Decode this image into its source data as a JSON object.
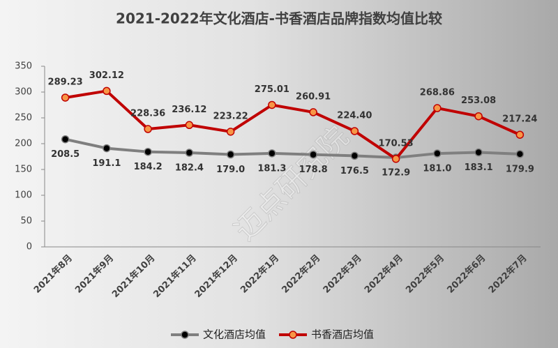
{
  "chart_data": {
    "type": "line",
    "title": "2021-2022年文化酒店-书香酒店品牌指数均值比较",
    "watermark": "迈点研究院",
    "categories": [
      "2021年8月",
      "2021年9月",
      "2021年10月",
      "2021年11月",
      "2021年12月",
      "2022年1月",
      "2022年2月",
      "2022年3月",
      "2022年4月",
      "2022年5月",
      "2022年6月",
      "2022年7月"
    ],
    "series": [
      {
        "name": "文化酒店均值",
        "color": "#7f7f7f",
        "marker_color": "#000000",
        "label_position": "below",
        "values": [
          208.5,
          191.1,
          184.2,
          182.4,
          179.0,
          181.3,
          178.8,
          176.5,
          172.9,
          181.0,
          183.1,
          179.9
        ],
        "value_labels": [
          "208.5",
          "191.1",
          "184.2",
          "182.4",
          "179.0",
          "181.3",
          "178.8",
          "176.5",
          "172.9",
          "181.0",
          "183.1",
          "179.9"
        ]
      },
      {
        "name": "书香酒店均值",
        "color": "#c00000",
        "marker_color": "#f79646",
        "label_position": "above",
        "values": [
          289.23,
          302.12,
          228.36,
          236.12,
          223.22,
          275.01,
          260.91,
          224.4,
          170.53,
          268.86,
          253.08,
          217.24
        ],
        "value_labels": [
          "289.23",
          "302.12",
          "228.36",
          "236.12",
          "223.22",
          "275.01",
          "260.91",
          "224.40",
          "170.53",
          "268.86",
          "253.08",
          "217.24"
        ]
      }
    ],
    "ylim": [
      0,
      350
    ],
    "yticks": [
      0,
      50,
      100,
      150,
      200,
      250,
      300,
      350
    ],
    "grid": false,
    "legend": "bottom"
  }
}
